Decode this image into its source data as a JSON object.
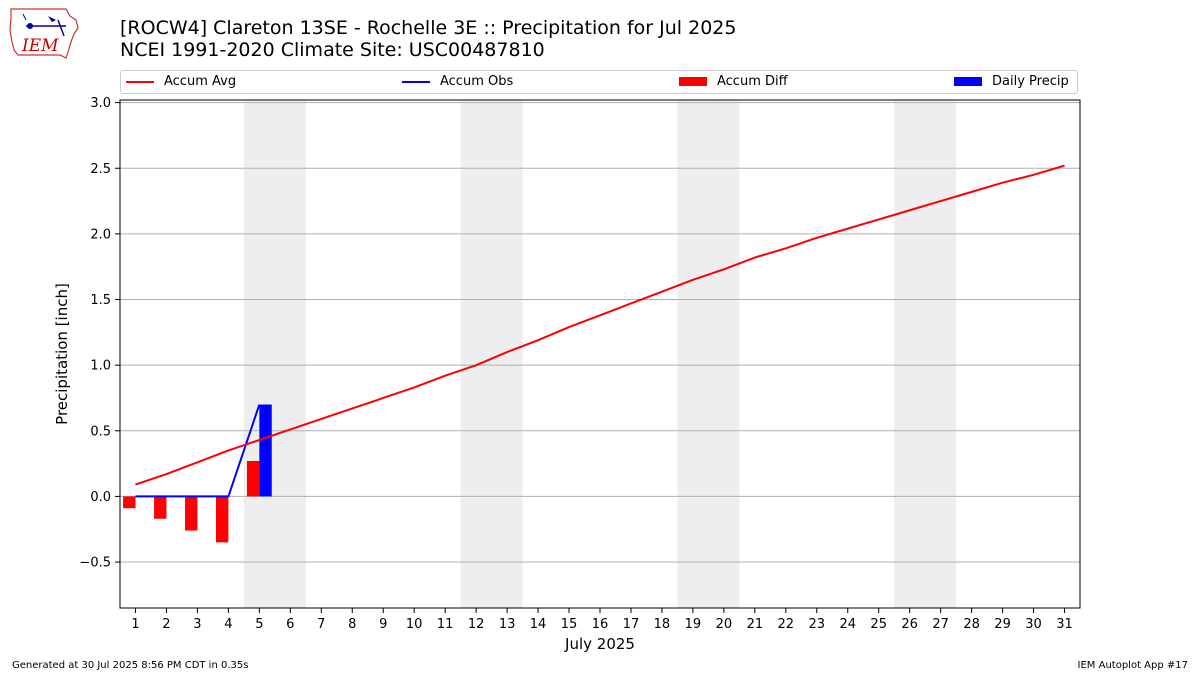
{
  "header": {
    "title": "[ROCW4] Clareton 13SE - Rochelle 3E :: Precipitation for Jul 2025",
    "subtitle": "NCEI 1991-2020 Climate Site: USC00487810",
    "logo_text": "IEM"
  },
  "legend": {
    "items": [
      {
        "label": "Accum Avg",
        "kind": "line",
        "color": "#ff0000"
      },
      {
        "label": "Accum Obs",
        "kind": "line",
        "color": "#0000ff"
      },
      {
        "label": "Accum Diff",
        "kind": "patch",
        "color": "#ff0000"
      },
      {
        "label": "Daily Precip",
        "kind": "patch",
        "color": "#0000ff"
      }
    ]
  },
  "footer": {
    "left": "Generated at 30 Jul 2025 8:56 PM CDT in 0.35s",
    "right": "IEM Autoplot App #17"
  },
  "chart_data": {
    "type": "bar",
    "xlabel": "July 2025",
    "ylabel": "Precipitation [inch]",
    "xlim": [
      0.5,
      31.5
    ],
    "ylim": [
      -0.85,
      3.02
    ],
    "yticks": [
      -0.5,
      0.0,
      0.5,
      1.0,
      1.5,
      2.0,
      2.5,
      3.0
    ],
    "ytick_labels": [
      "−0.5",
      "0.0",
      "0.5",
      "1.0",
      "1.5",
      "2.0",
      "2.5",
      "3.0"
    ],
    "xticks": [
      1,
      2,
      3,
      4,
      5,
      6,
      7,
      8,
      9,
      10,
      11,
      12,
      13,
      14,
      15,
      16,
      17,
      18,
      19,
      20,
      21,
      22,
      23,
      24,
      25,
      26,
      27,
      28,
      29,
      30,
      31
    ],
    "xtick_labels": [
      "1",
      "2",
      "3",
      "4",
      "5",
      "6",
      "7",
      "8",
      "9",
      "10",
      "11",
      "12",
      "13",
      "14",
      "15",
      "16",
      "17",
      "18",
      "19",
      "20",
      "21",
      "22",
      "23",
      "24",
      "25",
      "26",
      "27",
      "28",
      "29",
      "30",
      "31"
    ],
    "grid": "horizontal",
    "legend_position": "top",
    "weekend_days": [
      5,
      6,
      12,
      13,
      19,
      20,
      26,
      27
    ],
    "weekend_color": "#eeeeee",
    "accum_avg": {
      "name": "Accum Avg",
      "color": "#ff0000",
      "x": [
        1,
        2,
        3,
        4,
        5,
        6,
        7,
        8,
        9,
        10,
        11,
        12,
        13,
        14,
        15,
        16,
        17,
        18,
        19,
        20,
        21,
        22,
        23,
        24,
        25,
        26,
        27,
        28,
        29,
        30,
        31
      ],
      "y": [
        0.09,
        0.17,
        0.26,
        0.35,
        0.43,
        0.51,
        0.59,
        0.67,
        0.75,
        0.83,
        0.92,
        1.0,
        1.1,
        1.19,
        1.29,
        1.38,
        1.47,
        1.56,
        1.65,
        1.73,
        1.82,
        1.89,
        1.97,
        2.04,
        2.11,
        2.18,
        2.25,
        2.32,
        2.39,
        2.45,
        2.52
      ]
    },
    "accum_obs": {
      "name": "Accum Obs",
      "color": "#0000ff",
      "x": [
        1,
        2,
        3,
        4,
        5
      ],
      "y": [
        0.0,
        0.0,
        0.0,
        0.0,
        0.7
      ]
    },
    "accum_diff": {
      "name": "Accum Diff",
      "color": "#ff0000",
      "x": [
        1,
        2,
        3,
        4,
        5
      ],
      "y": [
        -0.09,
        -0.17,
        -0.26,
        -0.35,
        0.27
      ]
    },
    "daily_precip": {
      "name": "Daily Precip",
      "color": "#0000ff",
      "x": [
        5
      ],
      "y": [
        0.7
      ]
    }
  }
}
